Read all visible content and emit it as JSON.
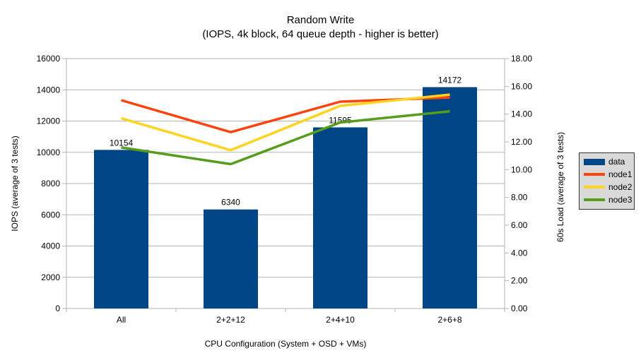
{
  "chart_data": {
    "type": "bar+line",
    "title": "Random Write",
    "subtitle": "(IOPS, 4k block, 64 queue depth - higher is better)",
    "categories": [
      "All",
      "2+2+12",
      "2+4+10",
      "2+6+8"
    ],
    "x_axis_title": "CPU Configuration (System + OSD + VMs)",
    "left_axis": {
      "title": "IOPS (average of 3 tests)",
      "min": 0,
      "max": 16000,
      "step": 2000,
      "tick_labels": [
        "0",
        "2000",
        "4000",
        "6000",
        "8000",
        "10000",
        "12000",
        "14000",
        "16000"
      ]
    },
    "right_axis": {
      "title": "60s Load (average of 3 tests)",
      "min": 0,
      "max": 18,
      "step": 2,
      "tick_labels": [
        "0.00",
        "2.00",
        "4.00",
        "6.00",
        "8.00",
        "10.00",
        "12.00",
        "14.00",
        "16.00",
        "18.00"
      ]
    },
    "series": [
      {
        "name": "data",
        "type": "bar",
        "axis": "left",
        "color": "#004586",
        "values": [
          10154,
          6340,
          11595,
          14172
        ],
        "value_labels": [
          "10154",
          "6340",
          "11595",
          "14172"
        ]
      },
      {
        "name": "node1",
        "type": "line",
        "axis": "right",
        "color": "#FF420E",
        "values": [
          15.0,
          12.7,
          14.9,
          15.2
        ]
      },
      {
        "name": "node2",
        "type": "line",
        "axis": "right",
        "color": "#FFD320",
        "values": [
          13.7,
          11.4,
          14.6,
          15.4
        ]
      },
      {
        "name": "node3",
        "type": "line",
        "axis": "right",
        "color": "#579D1C",
        "values": [
          11.6,
          10.4,
          13.4,
          14.2
        ]
      }
    ],
    "legend": {
      "position": "right",
      "entries": [
        "data",
        "node1",
        "node2",
        "node3"
      ]
    },
    "grid": {
      "horizontal": true,
      "vertical": false
    },
    "styles": {
      "grid_color": "#b3b3b3",
      "axis_color": "#b3b3b3",
      "text_color": "#000000",
      "background": "#ffffff",
      "legend_background": "#d9d9d9",
      "legend_border": "#333333"
    }
  }
}
